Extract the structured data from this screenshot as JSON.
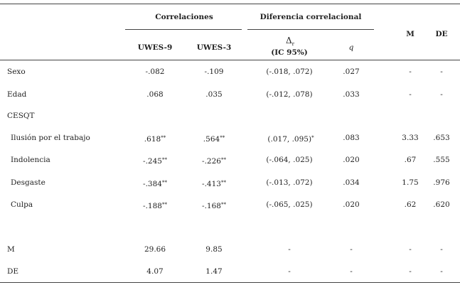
{
  "header": {
    "correlaciones": "Correlaciones",
    "diferencia": "Diferencia correlacional",
    "uwes9": "UWES-9",
    "uwes3": "UWES-3",
    "delta_symbol": "Δ",
    "delta_sub": "r",
    "ic": "(IC 95%)",
    "q": "q",
    "m": "M",
    "de": "DE"
  },
  "rows": [
    {
      "label": "Sexo",
      "uwes9": "-.082",
      "uwes9_star": "",
      "uwes3": "-.109",
      "uwes3_star": "",
      "delta": "(-.018, .072)",
      "delta_star": "",
      "q": ".027",
      "m": "-",
      "de": "-"
    },
    {
      "label": "Edad",
      "uwes9": ".068",
      "uwes9_star": "",
      "uwes3": ".035",
      "uwes3_star": "",
      "delta": "(-.012, .078)",
      "delta_star": "",
      "q": ".033",
      "m": "-",
      "de": "-"
    },
    {
      "label": "CESQT"
    },
    {
      "label": "Ilusión por el trabajo",
      "uwes9": ".618",
      "uwes9_star": "**",
      "uwes3": ".564",
      "uwes3_star": "**",
      "delta": "(.017, .095)",
      "delta_star": "*",
      "q": ".083",
      "m": "3.33",
      "de": ".653"
    },
    {
      "label": "Indolencia",
      "uwes9": "-.245",
      "uwes9_star": "**",
      "uwes3": "-.226",
      "uwes3_star": "**",
      "delta": "(-.064, .025)",
      "delta_star": "",
      "q": ".020",
      "m": ".67",
      "de": ".555"
    },
    {
      "label": "Desgaste",
      "uwes9": "-.384",
      "uwes9_star": "**",
      "uwes3": "-.413",
      "uwes3_star": "**",
      "delta": "(-.013, .072)",
      "delta_star": "",
      "q": ".034",
      "m": "1.75",
      "de": ".976"
    },
    {
      "label": "Culpa",
      "uwes9": "-.188",
      "uwes9_star": "**",
      "uwes3": "-.168",
      "uwes3_star": "**",
      "delta": "(-.065, .025)",
      "delta_star": "",
      "q": ".020",
      "m": ".62",
      "de": ".620"
    },
    {
      "label": "M",
      "uwes9": "29.66",
      "uwes3": "9.85",
      "delta": "-",
      "q": "-",
      "m": "-",
      "de": "-"
    },
    {
      "label": "DE",
      "uwes9": "4.07",
      "uwes3": "1.47",
      "delta": "-",
      "q": "-",
      "m": "-",
      "de": "-"
    }
  ]
}
